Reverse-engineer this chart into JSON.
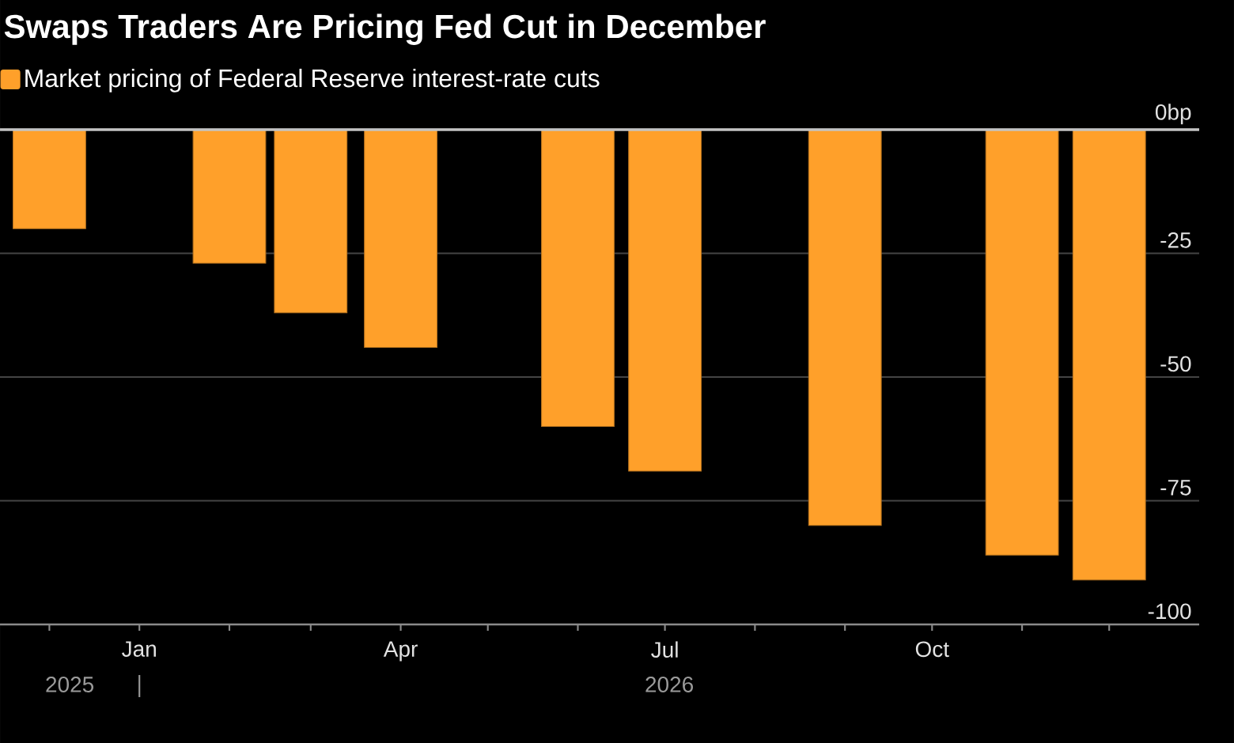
{
  "chart_data": {
    "type": "bar",
    "title": "Swaps Traders Are Pricing Fed Cut in December",
    "x": [
      "2025-12",
      "2026-02",
      "2026-03",
      "2026-04",
      "2026-06",
      "2026-07",
      "2026-09",
      "2026-11",
      "2026-12"
    ],
    "series": [
      {
        "name": "Market pricing of Federal Reserve interest-rate cuts",
        "color": "#ffa02a",
        "values": [
          -20,
          -27,
          -37,
          -44,
          -60,
          -69,
          -80,
          -86,
          -91
        ]
      }
    ],
    "xlim": [
      "2025-11-14",
      "2027-01-01"
    ],
    "xticks": [
      {
        "value": "2025-12",
        "label": null
      },
      {
        "value": "2026-01",
        "label": "Jan"
      },
      {
        "value": "2026-02",
        "label": null
      },
      {
        "value": "2026-03",
        "label": null
      },
      {
        "value": "2026-04",
        "label": "Apr"
      },
      {
        "value": "2026-05",
        "label": null
      },
      {
        "value": "2026-06",
        "label": null
      },
      {
        "value": "2026-07",
        "label": "Jul"
      },
      {
        "value": "2026-08",
        "label": null
      },
      {
        "value": "2026-09",
        "label": null
      },
      {
        "value": "2026-10",
        "label": "Oct"
      },
      {
        "value": "2026-11",
        "label": null
      },
      {
        "value": "2026-12",
        "label": null
      }
    ],
    "ylim": [
      -100,
      0
    ],
    "yticks": [
      {
        "value": 0,
        "label": "0bp"
      },
      -25,
      -50,
      -75,
      -100
    ],
    "grid": "y",
    "legend": "top left",
    "annotations": [
      "2025",
      "2026"
    ]
  }
}
